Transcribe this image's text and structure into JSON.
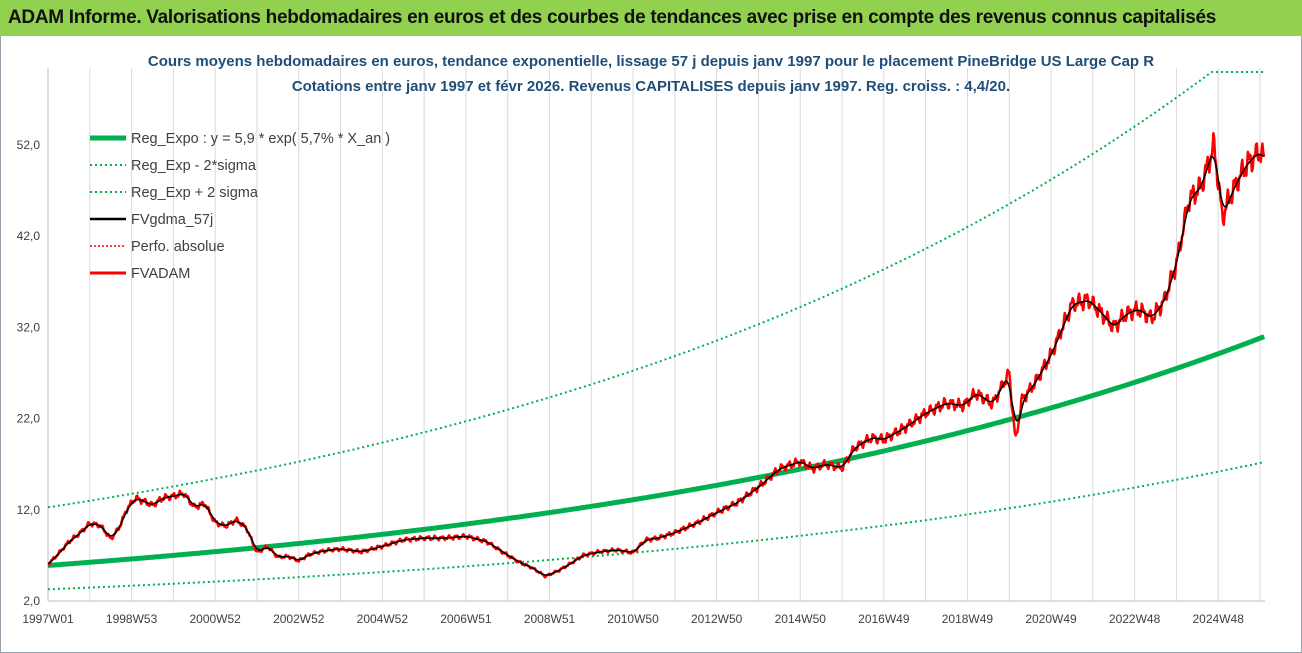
{
  "header": {
    "title": "ADAM Informe. Valorisations hebdomadaires en euros et des courbes de tendances avec prise en compte des revenus connus capitalisés"
  },
  "chart_data": {
    "type": "line",
    "title": [
      "Cours moyens hebdomadaires en euros, tendance exponentielle, lissage 57 j depuis janv 1997 pour le placement PineBridge US Large Cap R",
      "Cotations entre janv 1997 et févr 2026. Revenus CAPITALISES depuis janv 1997. Reg. croiss. : 4,4/20."
    ],
    "ylim": [
      2,
      60
    ],
    "xlim": [
      1997.0,
      2026.12
    ],
    "yticks": [
      "2,0",
      "12,0",
      "22,0",
      "32,0",
      "42,0",
      "52,0"
    ],
    "ytick_values": [
      2,
      12,
      22,
      32,
      42,
      52
    ],
    "xticks": [
      "1997W01",
      "1998W53",
      "2000W52",
      "2002W52",
      "2004W52",
      "2006W51",
      "2008W51",
      "2010W50",
      "2012W50",
      "2014W50",
      "2016W49",
      "2018W49",
      "2020W49",
      "2022W48",
      "2024W48"
    ],
    "xtick_values": [
      1997.0,
      1999.0,
      2001.0,
      2003.0,
      2005.0,
      2007.0,
      2009.0,
      2011.0,
      2013.0,
      2015.0,
      2017.0,
      2019.0,
      2021.0,
      2023.0,
      2025.0
    ],
    "grid": "vertical",
    "legend_position": "top-left",
    "colors": {
      "green": "#00b050",
      "black": "#000000",
      "red": "#ff0000",
      "title": "#1f4e79",
      "header": "#92d050"
    },
    "regression": {
      "label": "Reg_Expo : y = 5,9 * exp( 5,7% *  X_an )",
      "a": 5.9,
      "rate": 0.057,
      "x0": 1997.0,
      "sigma_factor_low": 0.556,
      "sigma_factor_high": 2.08
    },
    "series": [
      {
        "name": "Reg_Expo : y = 5,9 * exp( 5,7% *  X_an )",
        "style": "thick-green"
      },
      {
        "name": "Reg_Exp - 2*sigma",
        "style": "dotted-green"
      },
      {
        "name": "Reg_Exp + 2 sigma",
        "style": "dotted-green"
      },
      {
        "name": "FVgdma_57j",
        "style": "black"
      },
      {
        "name": "Perfo. absolue",
        "style": "dotted-red"
      },
      {
        "name": "FVADAM",
        "style": "red",
        "x": [
          1997.0,
          1997.25,
          1997.5,
          1997.75,
          1998.0,
          1998.25,
          1998.5,
          1998.7,
          1998.9,
          1999.1,
          1999.3,
          1999.5,
          1999.75,
          2000.0,
          2000.25,
          2000.5,
          2000.75,
          2001.0,
          2001.25,
          2001.5,
          2001.75,
          2002.0,
          2002.25,
          2002.5,
          2002.75,
          2003.0,
          2003.25,
          2003.5,
          2003.75,
          2004.0,
          2004.5,
          2005.0,
          2005.5,
          2006.0,
          2006.5,
          2007.0,
          2007.5,
          2008.0,
          2008.3,
          2008.6,
          2008.9,
          2009.2,
          2009.5,
          2009.8,
          2010.2,
          2010.6,
          2011.0,
          2011.3,
          2011.6,
          2012.0,
          2012.5,
          2013.0,
          2013.5,
          2014.0,
          2014.5,
          2015.0,
          2015.3,
          2015.6,
          2016.0,
          2016.3,
          2016.7,
          2017.0,
          2017.5,
          2018.0,
          2018.5,
          2018.9,
          2019.2,
          2019.6,
          2020.0,
          2020.15,
          2020.3,
          2020.6,
          2021.0,
          2021.5,
          2021.9,
          2022.2,
          2022.5,
          2022.8,
          2023.1,
          2023.4,
          2023.7,
          2024.0,
          2024.3,
          2024.6,
          2024.9,
          2025.1,
          2025.25,
          2025.45,
          2025.7,
          2026.0,
          2026.1
        ],
        "values": [
          6.0,
          7.2,
          8.5,
          9.4,
          10.5,
          10.3,
          8.8,
          10.0,
          12.2,
          13.3,
          12.9,
          12.5,
          13.3,
          13.5,
          13.8,
          12.3,
          12.7,
          10.6,
          10.2,
          10.9,
          10.0,
          7.3,
          8.0,
          6.8,
          6.9,
          6.4,
          7.1,
          7.4,
          7.6,
          7.7,
          7.4,
          8.0,
          8.7,
          8.9,
          8.9,
          9.1,
          8.5,
          7.0,
          6.2,
          5.6,
          4.7,
          5.3,
          6.1,
          7.0,
          7.4,
          7.6,
          7.3,
          8.7,
          8.9,
          9.5,
          10.5,
          11.7,
          12.8,
          14.5,
          16.5,
          17.3,
          16.5,
          17.0,
          16.6,
          18.8,
          19.9,
          19.7,
          21.0,
          22.6,
          23.7,
          23.4,
          24.8,
          23.6,
          27.0,
          19.5,
          24.0,
          25.8,
          29.0,
          34.5,
          35.0,
          33.6,
          32.0,
          33.5,
          34.0,
          33.0,
          34.8,
          39.0,
          46.0,
          47.5,
          52.0,
          44.0,
          46.0,
          48.0,
          50.0,
          51.3,
          50.5
        ]
      }
    ]
  }
}
